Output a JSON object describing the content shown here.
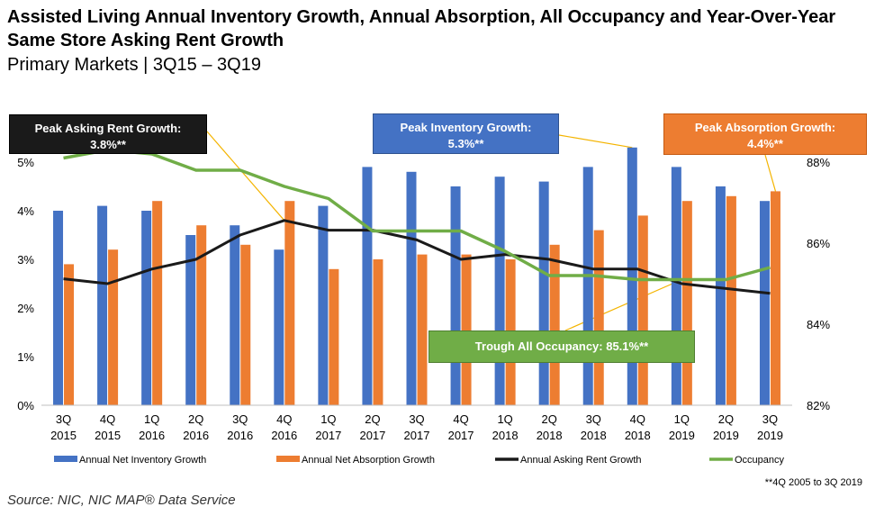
{
  "header": {
    "title": "Assisted Living Annual Inventory Growth, Annual Absorption, All Occupancy and Year-Over-Year Same Store Asking Rent Growth",
    "subtitle": "Primary Markets | 3Q15 – 3Q19"
  },
  "callouts": {
    "rent_label": "Peak Asking Rent Growth:",
    "rent_value": "3.8%**",
    "inventory_label": "Peak Inventory Growth:",
    "inventory_value": "5.3%**",
    "absorption_label": "Peak Absorption Growth:",
    "absorption_value": "4.4%**",
    "occupancy_text": "Trough All Occupancy: 85.1%**"
  },
  "footnote": "**4Q 2005 to 3Q 2019",
  "source": "Source: NIC, NIC MAP® Data Service",
  "colors": {
    "inventory": "#4472c4",
    "absorption": "#ed7d31",
    "rent": "#1a1a1a",
    "occupancy": "#70ad47",
    "connector": "#f4b400"
  },
  "chart_data": {
    "type": "bar",
    "categories": [
      [
        "3Q",
        "2015"
      ],
      [
        "4Q",
        "2015"
      ],
      [
        "1Q",
        "2016"
      ],
      [
        "2Q",
        "2016"
      ],
      [
        "3Q",
        "2016"
      ],
      [
        "4Q",
        "2016"
      ],
      [
        "1Q",
        "2017"
      ],
      [
        "2Q",
        "2017"
      ],
      [
        "3Q",
        "2017"
      ],
      [
        "4Q",
        "2017"
      ],
      [
        "1Q",
        "2018"
      ],
      [
        "2Q",
        "2018"
      ],
      [
        "3Q",
        "2018"
      ],
      [
        "4Q",
        "2018"
      ],
      [
        "1Q",
        "2019"
      ],
      [
        "2Q",
        "2019"
      ],
      [
        "3Q",
        "2019"
      ]
    ],
    "series": [
      {
        "name": "Annual Net Inventory Growth",
        "kind": "bar",
        "axis": "left",
        "values": [
          4.0,
          4.1,
          4.0,
          3.5,
          3.7,
          3.2,
          4.1,
          4.9,
          4.8,
          4.5,
          4.7,
          4.6,
          4.9,
          5.3,
          4.9,
          4.5,
          4.2
        ]
      },
      {
        "name": "Annual Net Absorption Growth",
        "kind": "bar",
        "axis": "left",
        "values": [
          2.9,
          3.2,
          4.2,
          3.7,
          3.3,
          4.2,
          2.8,
          3.0,
          3.1,
          3.1,
          3.0,
          3.3,
          3.6,
          3.9,
          4.2,
          4.3,
          4.4
        ]
      },
      {
        "name": "Annual Asking Rent Growth",
        "kind": "line",
        "axis": "left",
        "values": [
          2.6,
          2.5,
          2.8,
          3.0,
          3.5,
          3.8,
          3.6,
          3.6,
          3.4,
          3.0,
          3.1,
          3.0,
          2.8,
          2.8,
          2.5,
          2.4,
          2.3
        ]
      },
      {
        "name": "Occupancy",
        "kind": "line",
        "axis": "right",
        "values": [
          88.1,
          88.3,
          88.2,
          87.8,
          87.8,
          87.4,
          87.1,
          86.3,
          86.3,
          86.3,
          85.8,
          85.2,
          85.2,
          85.1,
          85.1,
          85.1,
          85.4
        ]
      }
    ],
    "y_left": {
      "min": 0,
      "max": 5,
      "ticks": [
        "0%",
        "1%",
        "2%",
        "3%",
        "4%",
        "5%"
      ]
    },
    "y_right": {
      "min": 82,
      "max": 88,
      "ticks": [
        "82%",
        "84%",
        "86%",
        "88%"
      ]
    },
    "grid": false,
    "legend_position": "bottom"
  }
}
